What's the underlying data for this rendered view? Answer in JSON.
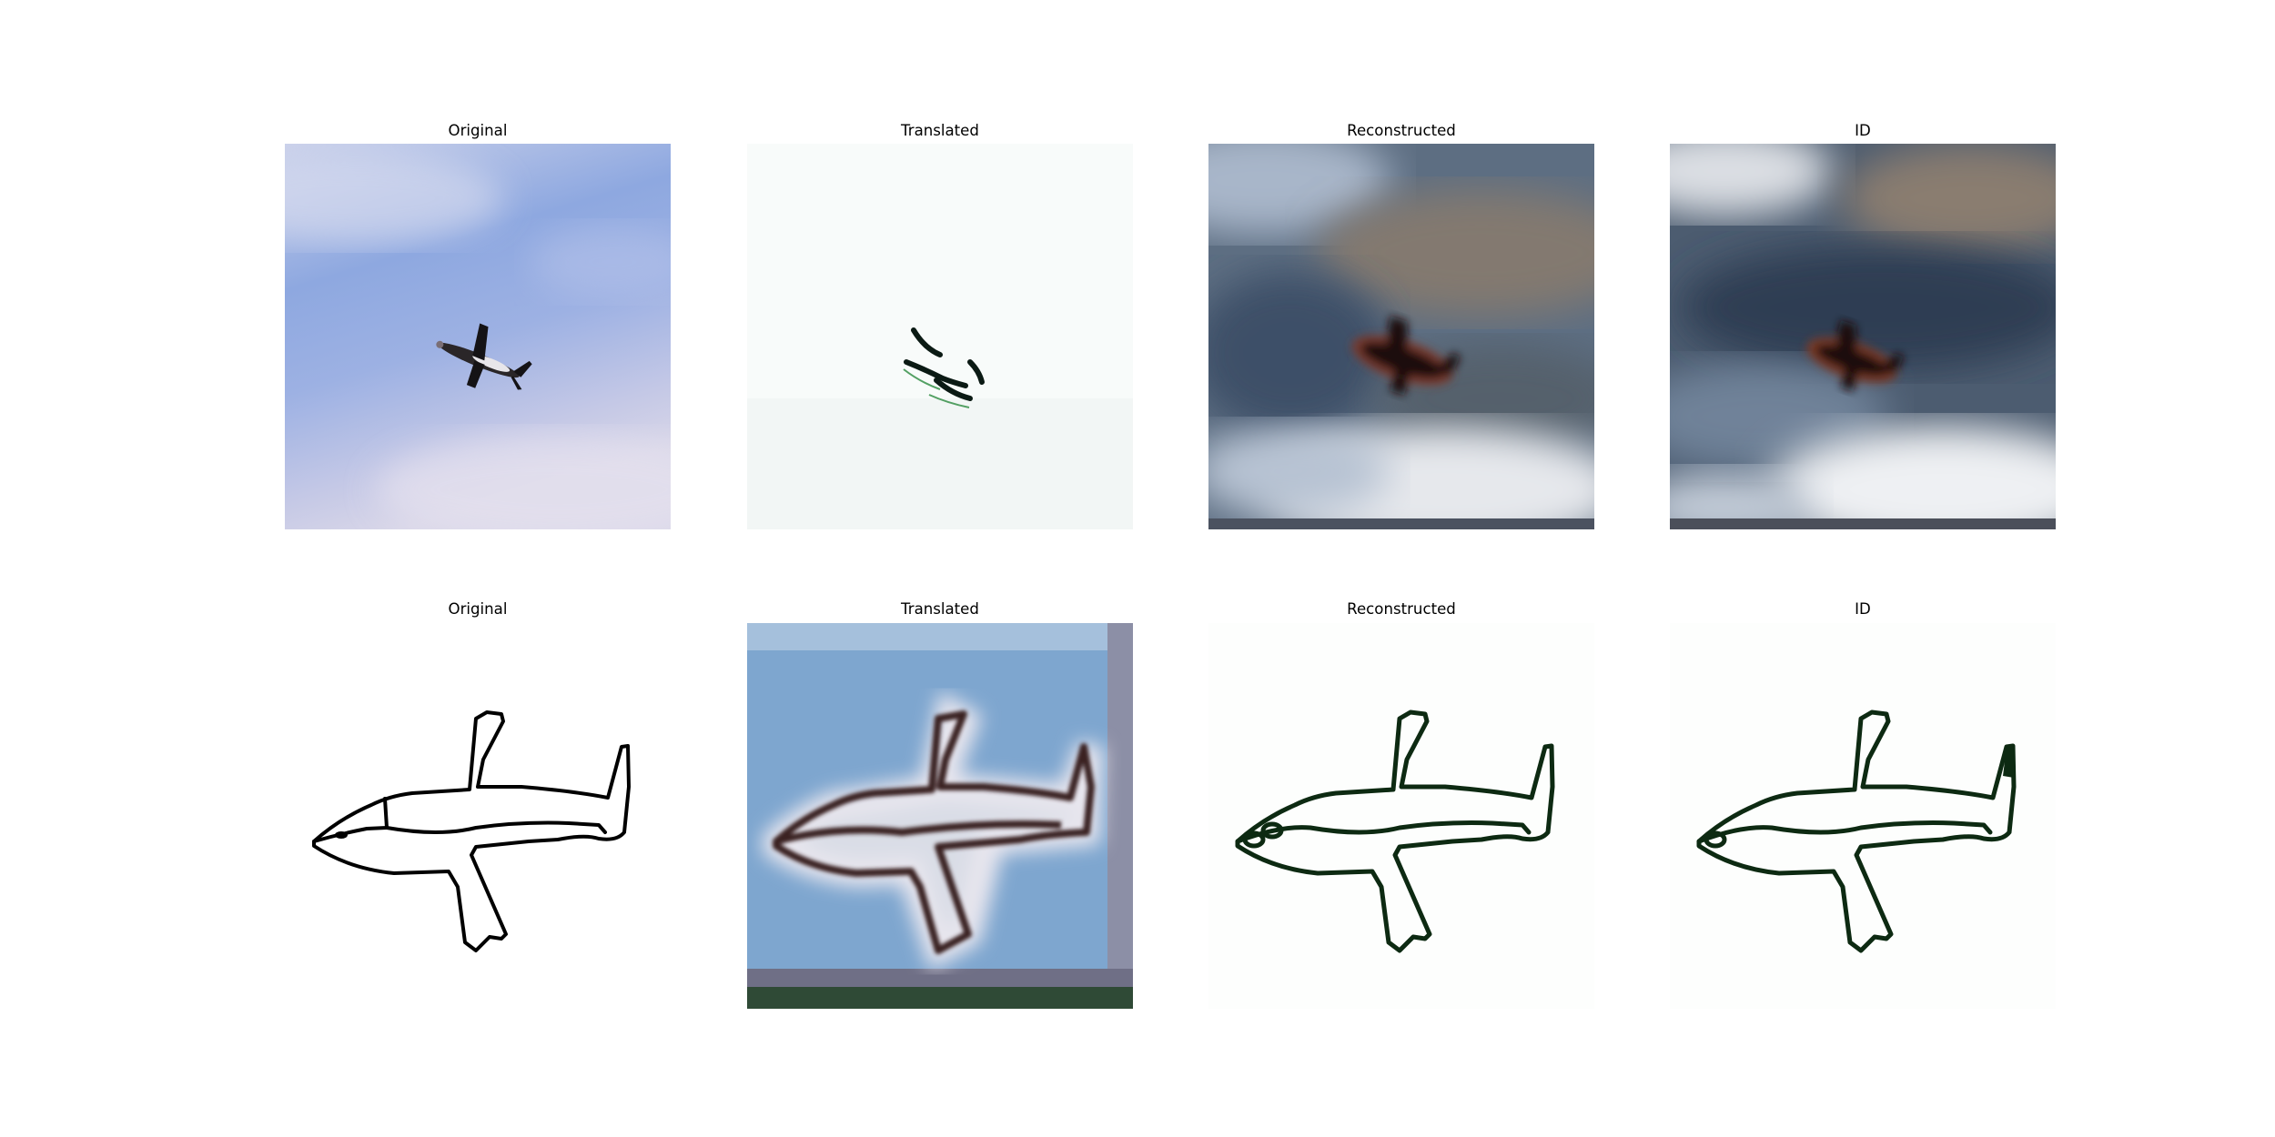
{
  "rows": [
    {
      "titles": [
        "Original",
        "Translated",
        "Reconstructed",
        "ID"
      ]
    },
    {
      "titles": [
        "Original",
        "Translated",
        "Reconstructed",
        "ID"
      ]
    }
  ],
  "panels": {
    "r1c1": "photo-airplane-sky",
    "r1c2": "sketch-airplane-fragment",
    "r1c3": "blurry-airplane-photo",
    "r1c4": "blurry-airplane-photo",
    "r2c1": "sketch-airplane",
    "r2c2": "painted-airplane-blue",
    "r2c3": "sketch-airplane-green",
    "r2c4": "sketch-airplane-green"
  },
  "colors": {
    "sky": "#8fa6dd",
    "sketch_stroke": "#000000",
    "green_stroke": "#0b2a10",
    "translated_bg": "#7fa6cc"
  }
}
